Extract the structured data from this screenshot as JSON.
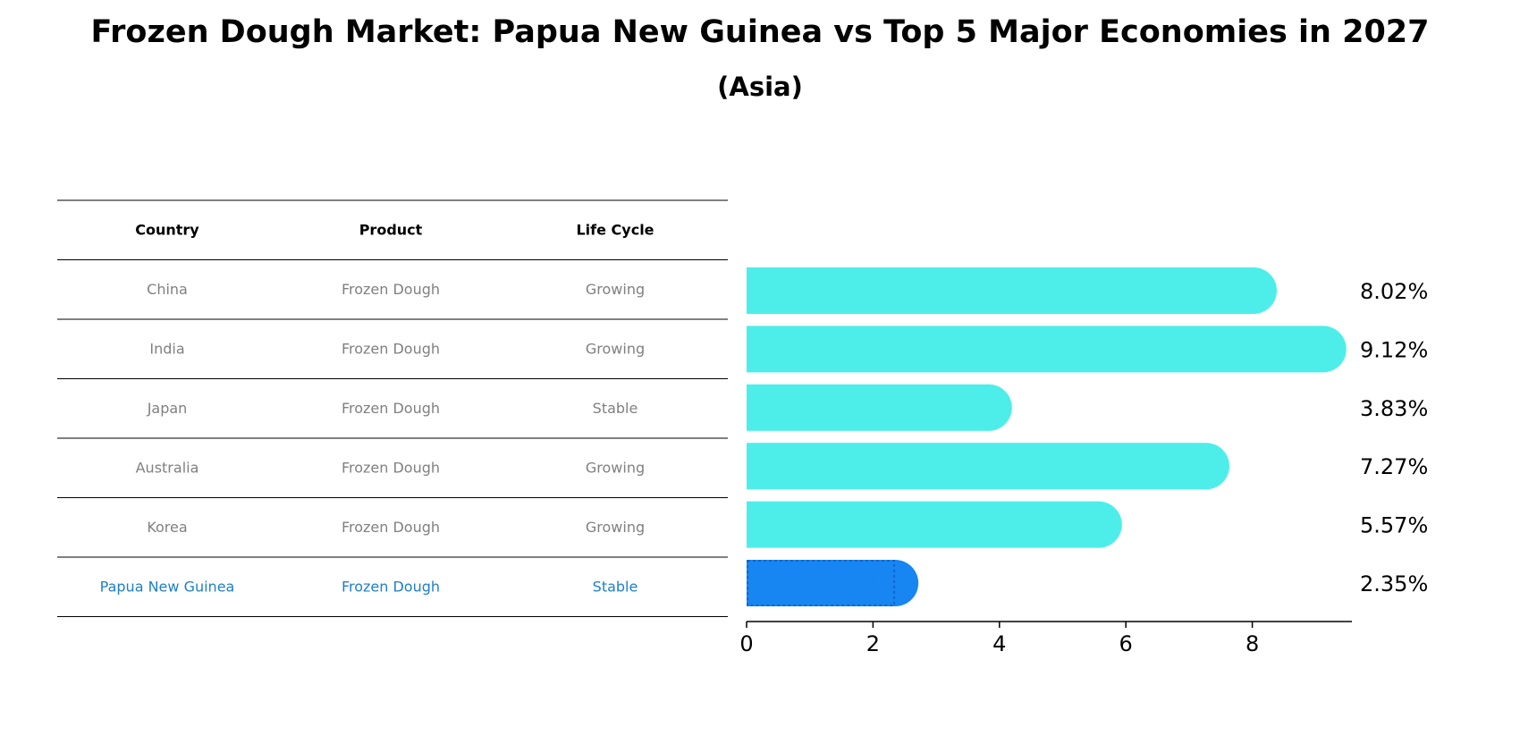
{
  "title": "Frozen Dough Market: Papua New Guinea vs Top 5 Major Economies in 2027",
  "subtitle": "(Asia)",
  "table": {
    "headers": [
      "Country",
      "Product",
      "Life Cycle"
    ],
    "rows": [
      [
        "China",
        "Frozen Dough",
        "Growing"
      ],
      [
        "India",
        "Frozen Dough",
        "Growing"
      ],
      [
        "Japan",
        "Frozen Dough",
        "Stable"
      ],
      [
        "Australia",
        "Frozen Dough",
        "Growing"
      ],
      [
        "Korea",
        "Frozen Dough",
        "Growing"
      ],
      [
        "Papua New Guinea",
        "Frozen Dough",
        "Stable"
      ]
    ]
  },
  "colors": {
    "bar": "#4DEEEA",
    "highlight": "#1785F2",
    "text_gray": "#808080",
    "highlight_text": "#1E7FC9"
  },
  "chart_data": {
    "type": "bar",
    "orientation": "horizontal",
    "categories": [
      "China",
      "India",
      "Japan",
      "Australia",
      "Korea",
      "Papua New Guinea"
    ],
    "values": [
      8.02,
      9.12,
      3.83,
      7.27,
      5.57,
      2.35
    ],
    "labels": [
      "8.02%",
      "9.12%",
      "3.83%",
      "7.27%",
      "5.57%",
      "2.35%"
    ],
    "highlight": "Papua New Guinea",
    "xlim": [
      0,
      9.576
    ],
    "xticks": [
      0,
      2,
      4,
      6,
      8
    ],
    "xlabel": "",
    "ylabel": "",
    "grid": false
  }
}
